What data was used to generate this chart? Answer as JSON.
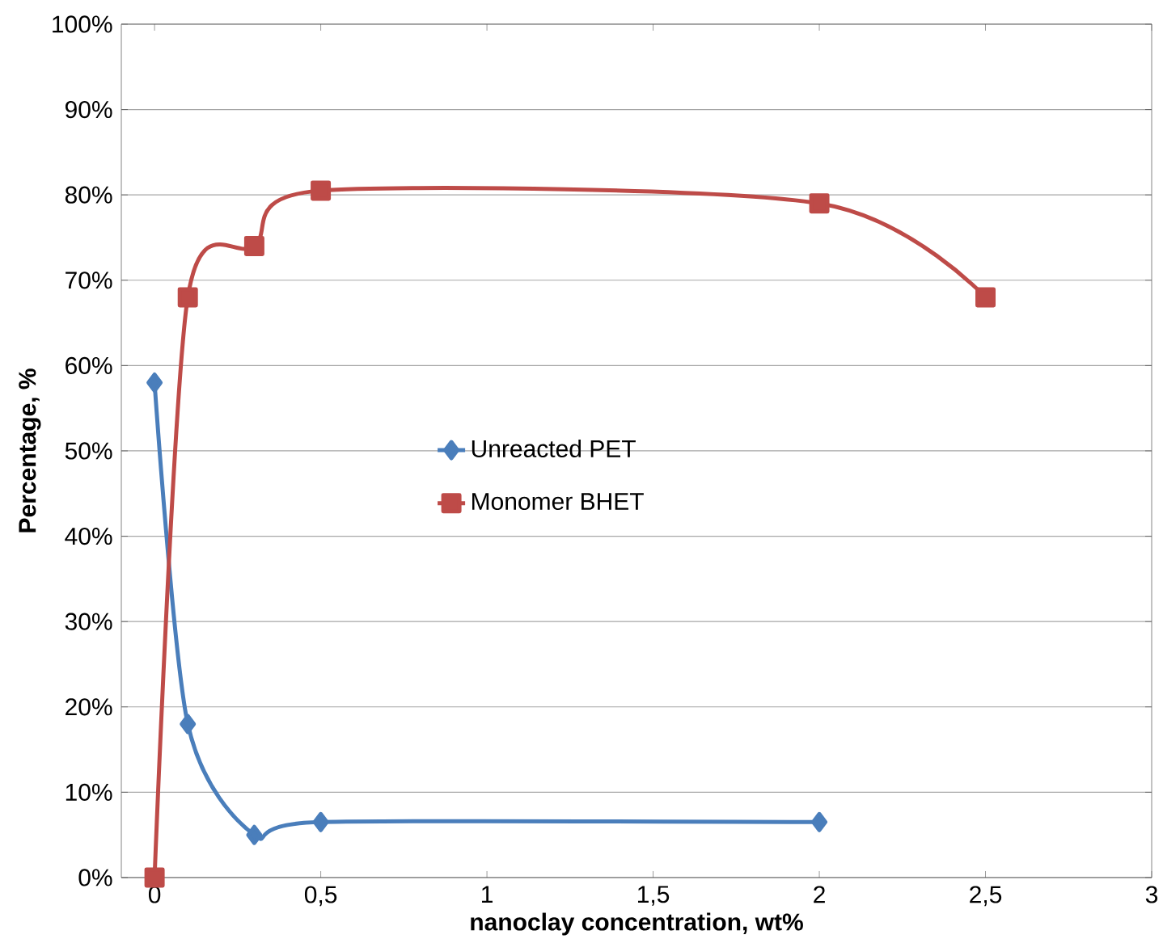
{
  "chart_data": {
    "type": "line",
    "xlabel": "nanoclay concentration, wt%",
    "ylabel": "Percentage, %",
    "xlim": [
      -0.1,
      3
    ],
    "ylim": [
      0,
      100
    ],
    "xticks": [
      0,
      {
        "value": 0.5,
        "label": "0,5"
      },
      1,
      {
        "value": 1.5,
        "label": "1,5"
      },
      2,
      {
        "value": 2.5,
        "label": "2,5"
      },
      3
    ],
    "yticks": [
      {
        "value": 0,
        "label": "0%"
      },
      {
        "value": 10,
        "label": "10%"
      },
      {
        "value": 20,
        "label": "20%"
      },
      {
        "value": 30,
        "label": "30%"
      },
      {
        "value": 40,
        "label": "40%"
      },
      {
        "value": 50,
        "label": "50%"
      },
      {
        "value": 60,
        "label": "60%"
      },
      {
        "value": 70,
        "label": "70%"
      },
      {
        "value": 80,
        "label": "80%"
      },
      {
        "value": 90,
        "label": "90%"
      },
      {
        "value": 100,
        "label": "100%"
      }
    ],
    "grid": "y",
    "legend": "center",
    "line_style": "solid",
    "series": [
      {
        "name": "Unreacted PET",
        "color": "#4a7ebb",
        "marker": "diamond",
        "x": [
          0,
          0.1,
          0.3,
          0.5,
          2
        ],
        "values": [
          58,
          18,
          5,
          6.5,
          6.5
        ]
      },
      {
        "name": "Monomer BHET",
        "color": "#be4b48",
        "marker": "square",
        "x": [
          0,
          0.1,
          0.3,
          0.5,
          2,
          2.5
        ],
        "values": [
          0,
          68,
          74,
          80.5,
          79,
          68
        ]
      }
    ]
  }
}
